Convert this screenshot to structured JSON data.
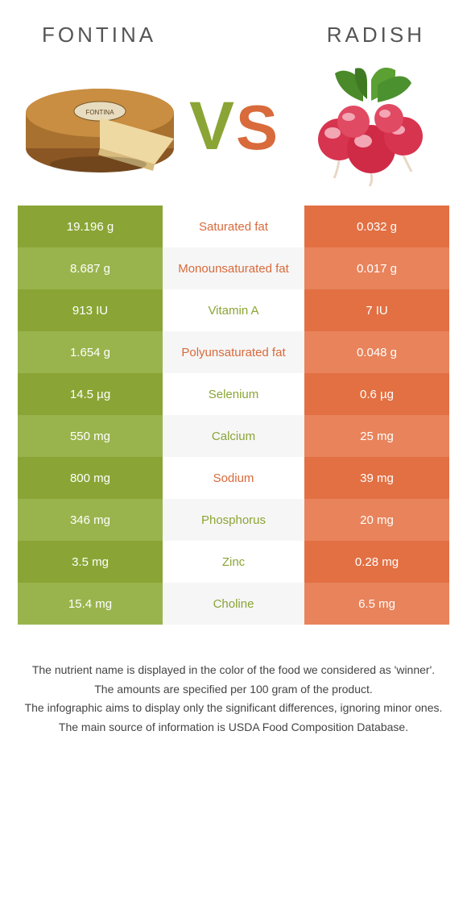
{
  "header": {
    "left_title": "Fontina",
    "right_title": "Radish",
    "vs_v": "V",
    "vs_s": "S"
  },
  "colors": {
    "left_primary": "#8aa535",
    "left_alt": "#9ab44d",
    "right_primary": "#e27043",
    "right_alt": "#e8835b",
    "mid_primary": "#ffffff",
    "mid_alt": "#f6f6f6",
    "label_left": "#d86a3b",
    "label_right": "#8aa535",
    "cell_text": "#ffffff",
    "note_text": "#444444"
  },
  "rows": [
    {
      "label": "Saturated fat",
      "left": "19.196 g",
      "right": "0.032 g",
      "winner": "left"
    },
    {
      "label": "Monounsaturated fat",
      "left": "8.687 g",
      "right": "0.017 g",
      "winner": "left"
    },
    {
      "label": "Vitamin A",
      "left": "913 IU",
      "right": "7 IU",
      "winner": "right"
    },
    {
      "label": "Polyunsaturated fat",
      "left": "1.654 g",
      "right": "0.048 g",
      "winner": "left"
    },
    {
      "label": "Selenium",
      "left": "14.5 µg",
      "right": "0.6 µg",
      "winner": "right"
    },
    {
      "label": "Calcium",
      "left": "550 mg",
      "right": "25 mg",
      "winner": "right"
    },
    {
      "label": "Sodium",
      "left": "800 mg",
      "right": "39 mg",
      "winner": "left"
    },
    {
      "label": "Phosphorus",
      "left": "346 mg",
      "right": "20 mg",
      "winner": "right"
    },
    {
      "label": "Zinc",
      "left": "3.5 mg",
      "right": "0.28 mg",
      "winner": "right"
    },
    {
      "label": "Choline",
      "left": "15.4 mg",
      "right": "6.5 mg",
      "winner": "right"
    }
  ],
  "notes": [
    "The nutrient name is displayed in the color of the food we considered as 'winner'.",
    "The amounts are specified per 100 gram of the product.",
    "The infographic aims to display only the significant differences, ignoring minor ones.",
    "The main source of information is USDA Food Composition Database."
  ]
}
